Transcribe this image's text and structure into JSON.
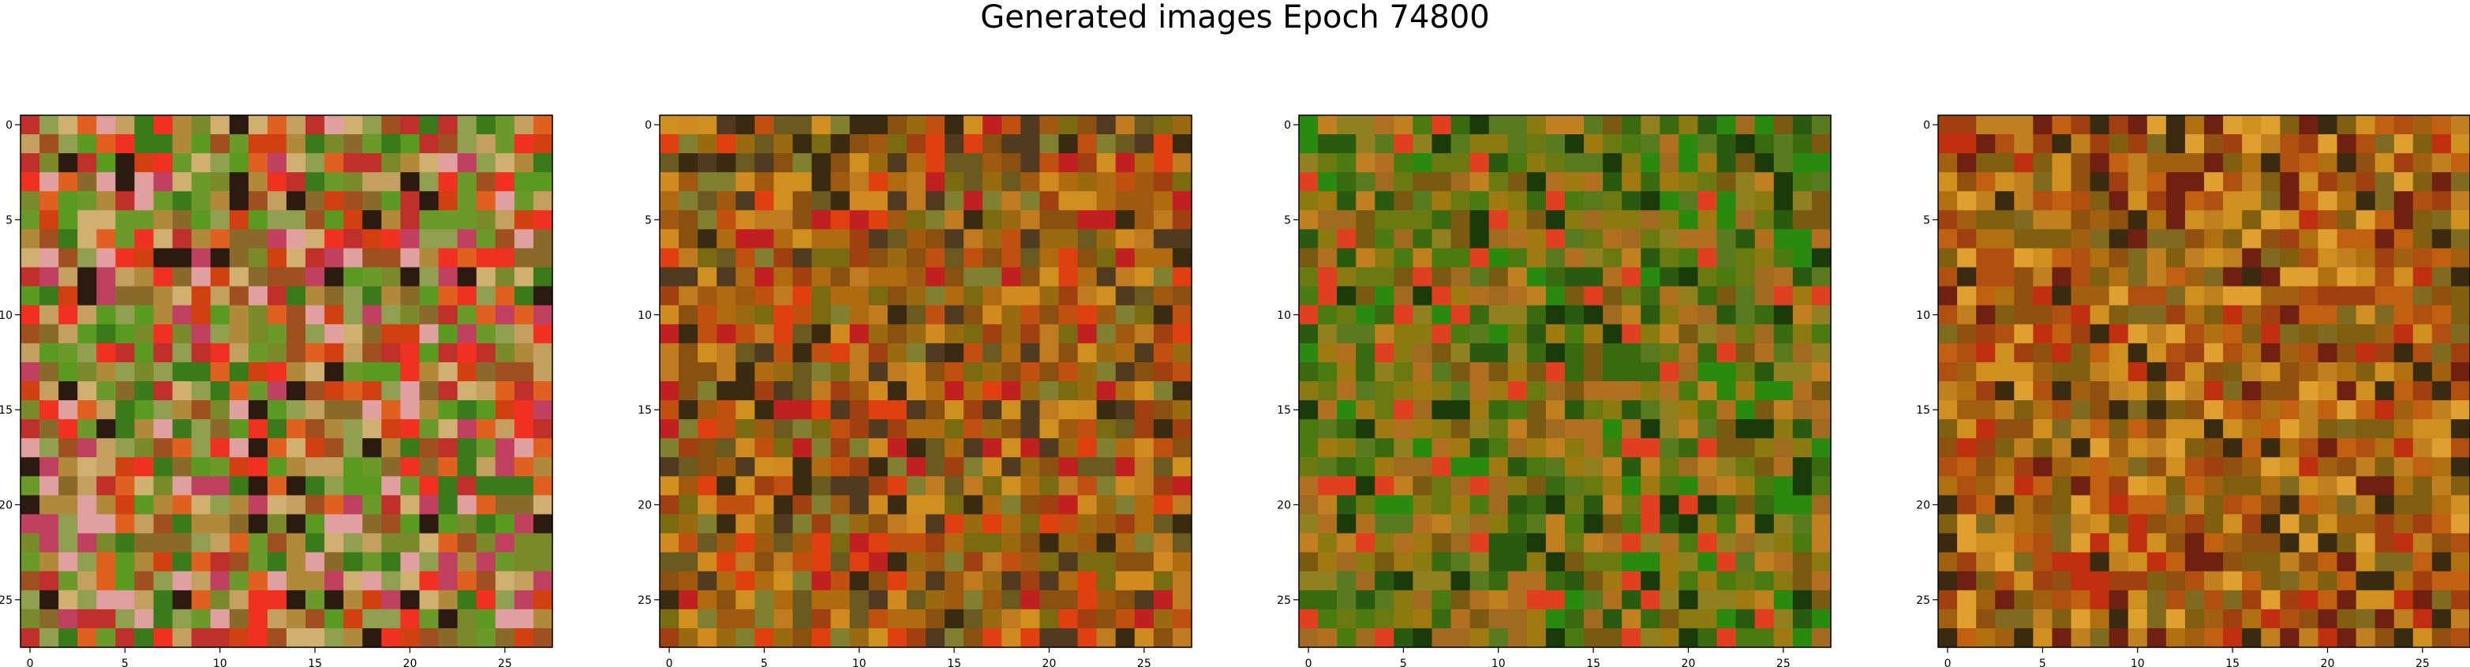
{
  "title": "Generated images Epoch 74800",
  "chart_data": {
    "type": "heatmap",
    "title": "Generated images Epoch 74800",
    "panels": [
      {
        "name": "",
        "grid_size": 28,
        "xticks": [
          0,
          5,
          10,
          15,
          20,
          25
        ],
        "yticks": [
          0,
          5,
          10,
          15,
          20,
          25
        ],
        "palette": [
          "#7a8a2a",
          "#6b9a2a",
          "#5a9a20",
          "#b08a3a",
          "#8a6a2a",
          "#c4a060",
          "#3a7a1a",
          "#a05020",
          "#d0b070",
          "#2a1a10",
          "#c0302a",
          "#e06020",
          "#d04010",
          "#f03020",
          "#e0a0a0",
          "#c04060",
          "#90a050"
        ],
        "description_hint": "colorful noise-like RGB image, green top, red/orange center band"
      },
      {
        "name": "",
        "grid_size": 28,
        "xticks": [
          0,
          5,
          10,
          15,
          20,
          25
        ],
        "yticks": [
          0,
          5,
          10,
          15,
          20,
          25
        ],
        "palette": [
          "#b06a10",
          "#c07a20",
          "#9a6a10",
          "#8a5010",
          "#d08a20",
          "#a05a10",
          "#7a6a10",
          "#c05010",
          "#e04010",
          "#3a2a10",
          "#a04010",
          "#d09020",
          "#6a5a20",
          "#503a20",
          "#c02020",
          "#808030"
        ],
        "description_hint": "orange/brown noise with red band"
      },
      {
        "name": "",
        "grid_size": 28,
        "xticks": [
          0,
          5,
          10,
          15,
          20,
          25
        ],
        "yticks": [
          0,
          5,
          10,
          15,
          20,
          25
        ],
        "palette": [
          "#8a7a10",
          "#6a7a10",
          "#4a7a10",
          "#3a6a10",
          "#a07a10",
          "#b07020",
          "#2a5a10",
          "#7a5a10",
          "#c08020",
          "#5a7a20",
          "#a06a20",
          "#2a8a10",
          "#e04020",
          "#1a3a0a",
          "#908020"
        ],
        "description_hint": "green/olive noise"
      },
      {
        "name": "",
        "grid_size": 28,
        "xticks": [
          0,
          5,
          10,
          15,
          20,
          25
        ],
        "yticks": [
          0,
          5,
          10,
          15,
          20,
          25
        ],
        "palette": [
          "#b07010",
          "#c08020",
          "#a06010",
          "#905010",
          "#d09020",
          "#b05010",
          "#806010",
          "#c06010",
          "#e0a030",
          "#702010",
          "#3a2a10",
          "#a04010",
          "#806a20",
          "#c03010"
        ],
        "description_hint": "orange noise"
      }
    ]
  }
}
